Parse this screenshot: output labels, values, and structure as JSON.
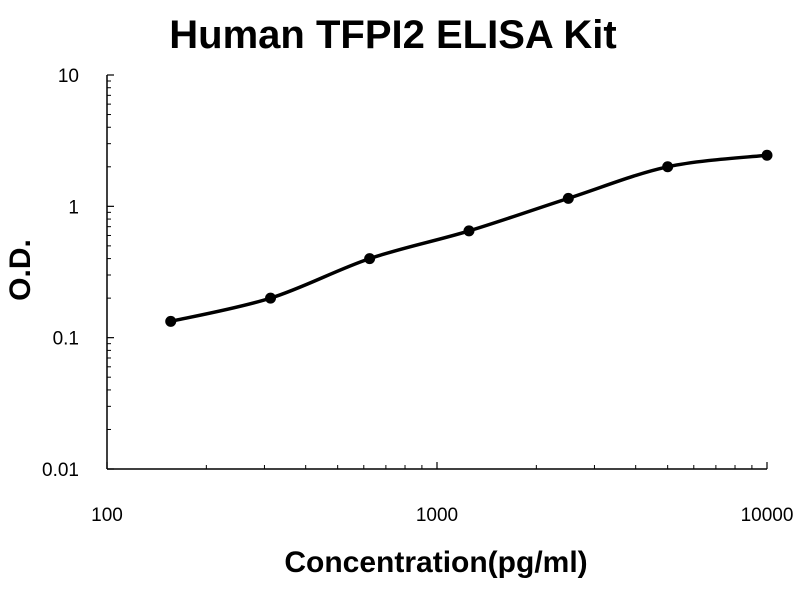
{
  "chart_data": {
    "type": "scatter",
    "title": "Human TFPI2 ELISA Kit",
    "xlabel": "Concentration(pg/ml)",
    "ylabel": "O.D.",
    "x_scale": "log",
    "y_scale": "log",
    "xlim": [
      100,
      10000
    ],
    "ylim": [
      0.01,
      10
    ],
    "x_ticks": [
      100,
      1000,
      10000
    ],
    "x_tick_labels": [
      "100",
      "1000",
      "10000"
    ],
    "y_ticks": [
      0.01,
      0.1,
      1,
      10
    ],
    "y_tick_labels": [
      "0.01",
      "0.1",
      "1",
      "10"
    ],
    "grid": false,
    "legend": "none",
    "series": [
      {
        "x": [
          156,
          313,
          625,
          1250,
          2500,
          5000,
          10000
        ],
        "y": [
          0.133,
          0.2,
          0.4,
          0.65,
          1.15,
          2.0,
          2.45
        ]
      }
    ],
    "trendline": "smooth fit curve through points",
    "colors": {
      "curve": "#000000",
      "points": "#000000",
      "axes": "#000000"
    }
  }
}
